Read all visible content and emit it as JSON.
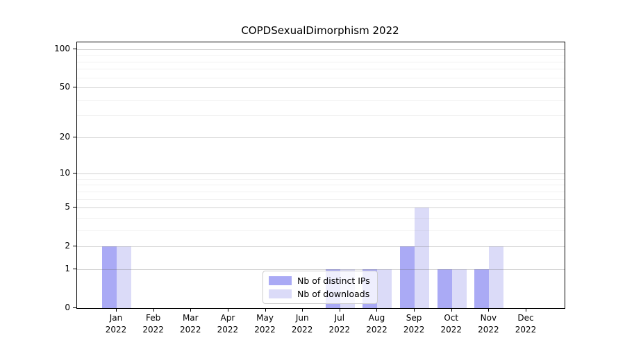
{
  "chart_data": {
    "type": "bar",
    "title": "COPDSexualDimorphism 2022",
    "categories": [
      "Jan 2022",
      "Feb 2022",
      "Mar 2022",
      "Apr 2022",
      "May 2022",
      "Jun 2022",
      "Jul 2022",
      "Aug 2022",
      "Sep 2022",
      "Oct 2022",
      "Nov 2022",
      "Dec 2022"
    ],
    "series": [
      {
        "name": "Nb of distinct IPs",
        "color": "#aaaaf5",
        "values": [
          2,
          0,
          0,
          0,
          0,
          0,
          1,
          1,
          2,
          1,
          1,
          0
        ]
      },
      {
        "name": "Nb of downloads",
        "color": "#dbdbf8",
        "values": [
          2,
          0,
          0,
          0,
          0,
          0,
          1,
          1,
          5,
          1,
          2,
          0
        ]
      }
    ],
    "xlabel": "",
    "ylabel": "",
    "y_scale": "log1p",
    "ylim": [
      0,
      113
    ],
    "y_ticks": [
      0,
      1,
      2,
      5,
      10,
      20,
      50,
      100
    ],
    "y_minor_ticks": [
      3,
      4,
      6,
      7,
      8,
      9,
      30,
      40,
      60,
      70,
      80,
      90
    ],
    "grid": true,
    "legend_position": "lower center"
  }
}
